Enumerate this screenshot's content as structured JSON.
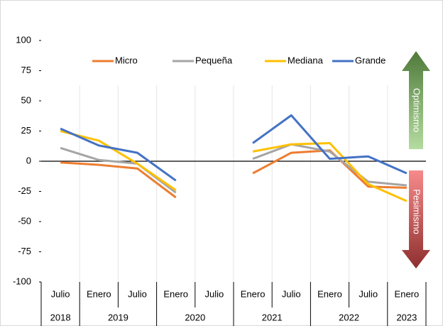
{
  "chart_data": {
    "type": "line",
    "categories": [
      "Julio",
      "Enero",
      "Julio",
      "Enero",
      "Julio",
      "Enero",
      "Julio",
      "Enero",
      "Julio",
      "Enero"
    ],
    "years": [
      "2018",
      "2019",
      null,
      "2020",
      null,
      "2021",
      null,
      "2022",
      null,
      "2023"
    ],
    "series": [
      {
        "name": "Micro",
        "color": "#ed7d31",
        "values": [
          -1,
          -3,
          -6,
          -30,
          null,
          -10,
          7,
          9,
          -21,
          -22
        ]
      },
      {
        "name": "Pequeña",
        "color": "#a5a5a5",
        "values": [
          11,
          1,
          -2,
          -26,
          null,
          2,
          14,
          8,
          -17,
          -20
        ]
      },
      {
        "name": "Mediana",
        "color": "#ffc000",
        "values": [
          25,
          17,
          -2,
          -24,
          null,
          8,
          14,
          15,
          -19,
          -33
        ]
      },
      {
        "name": "Grande",
        "color": "#4472c4",
        "values": [
          27,
          13,
          7,
          -16,
          null,
          15,
          38,
          2,
          4,
          -10
        ]
      }
    ],
    "ylim": [
      -100,
      100
    ],
    "yticks": [
      -100,
      -75,
      -50,
      -25,
      0,
      25,
      50,
      75,
      100
    ],
    "annotations": {
      "up": "Optimismo",
      "down": "Pesimismo"
    }
  }
}
